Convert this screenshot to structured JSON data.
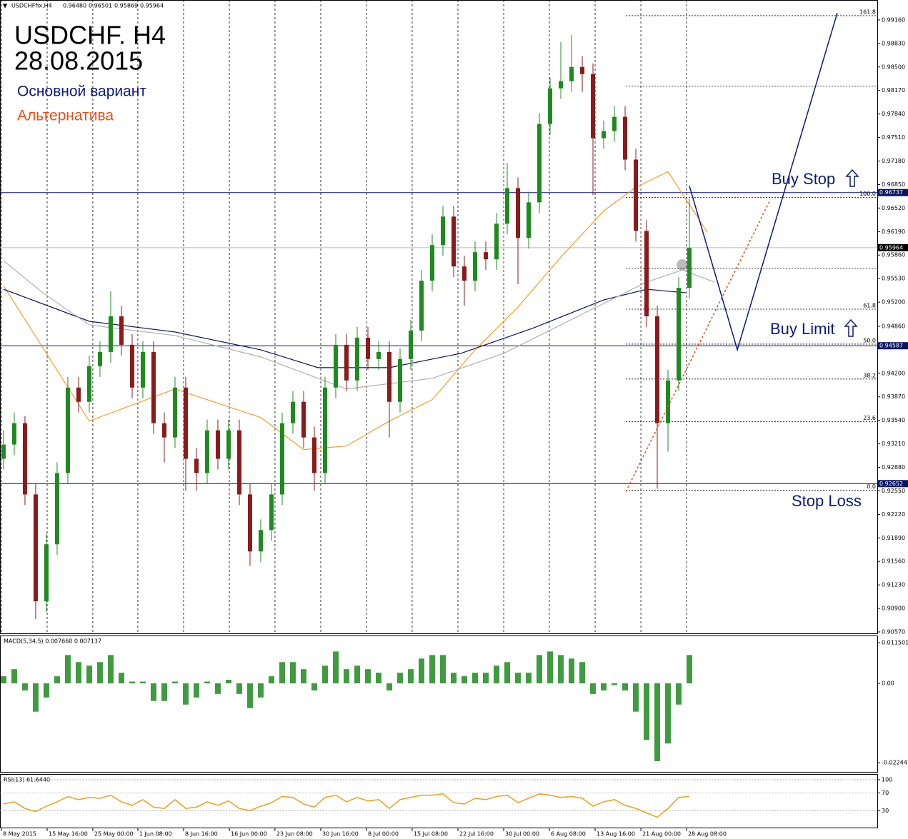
{
  "header": "USDCHFfix,H4",
  "header_values": [
    "0.96480",
    "0.96501",
    "0.95869",
    "0.95964"
  ],
  "chart_data": [
    {
      "type": "candlestick",
      "title": "USDCHF. H4",
      "subtitle": "28.08.2015",
      "up_color": "#1f8a1f",
      "down_color": "#8b1a1a",
      "grid": true,
      "xlim": [
        -0.33,
        81.53
      ],
      "ylim": [
        0.9054,
        0.9944
      ],
      "yticks": [
        {
          "value": 0.9916,
          "label": "0.99160"
        },
        {
          "value": 0.9883,
          "label": "0.98830"
        },
        {
          "value": 0.985,
          "label": "0.98500"
        },
        {
          "value": 0.9817,
          "label": "0.98170"
        },
        {
          "value": 0.9784,
          "label": "0.97840"
        },
        {
          "value": 0.9751,
          "label": "0.97510"
        },
        {
          "value": 0.9718,
          "label": "0.97180"
        },
        {
          "value": 0.9685,
          "label": "0.96850"
        },
        {
          "value": 0.9652,
          "label": "0.96520"
        },
        {
          "value": 0.9619,
          "label": "0.96190"
        },
        {
          "value": 0.9586,
          "label": "0.95860"
        },
        {
          "value": 0.9553,
          "label": "0.95530"
        },
        {
          "value": 0.952,
          "label": "0.95200"
        },
        {
          "value": 0.9486,
          "label": "0.94860"
        },
        {
          "value": 0.942,
          "label": "0.94200"
        },
        {
          "value": 0.9387,
          "label": "0.93870"
        },
        {
          "value": 0.9354,
          "label": "0.93540"
        },
        {
          "value": 0.9321,
          "label": "0.93210"
        },
        {
          "value": 0.9288,
          "label": "0.92880"
        },
        {
          "value": 0.9255,
          "label": "0.92550"
        },
        {
          "value": 0.9222,
          "label": "0.92220"
        },
        {
          "value": 0.9189,
          "label": "0.91890"
        },
        {
          "value": 0.9156,
          "label": "0.91560"
        },
        {
          "value": 0.9123,
          "label": "0.91230"
        },
        {
          "value": 0.909,
          "label": "0.90900"
        },
        {
          "value": 0.9057,
          "label": "0.90570"
        }
      ],
      "xticks": [
        {
          "value": -0.2,
          "label": "8 May 2015"
        },
        {
          "value": 4.07,
          "label": "15 May 16:00"
        },
        {
          "value": 8.33,
          "label": "25 May 00:00"
        },
        {
          "value": 12.53,
          "label": "1 Jun 08:00"
        },
        {
          "value": 16.8,
          "label": "8 Jun 16:00"
        },
        {
          "value": 21.07,
          "label": "16 Jun 00:00"
        },
        {
          "value": 25.33,
          "label": "23 Jun 08:00"
        },
        {
          "value": 29.6,
          "label": "30 Jun 16:00"
        },
        {
          "value": 33.87,
          "label": "8 Jul 00:00"
        },
        {
          "value": 38.13,
          "label": "15 Jul 08:00"
        },
        {
          "value": 42.4,
          "label": "22 Jul 16:00"
        },
        {
          "value": 46.67,
          "label": "30 Jul 00:00"
        },
        {
          "value": 50.93,
          "label": "6 Aug 08:00"
        },
        {
          "value": 55.2,
          "label": "13 Aug 16:00"
        },
        {
          "value": 59.47,
          "label": "21 Aug 00:00"
        },
        {
          "value": 63.73,
          "label": "28 Aug 08:00"
        }
      ],
      "ohlc": [
        [
          0.93,
          0.934,
          0.9285,
          0.932
        ],
        [
          0.932,
          0.9365,
          0.9305,
          0.935
        ],
        [
          0.935,
          0.936,
          0.9235,
          0.925
        ],
        [
          0.925,
          0.9265,
          0.9075,
          0.91
        ],
        [
          0.91,
          0.9195,
          0.9085,
          0.918
        ],
        [
          0.918,
          0.9295,
          0.9165,
          0.928
        ],
        [
          0.928,
          0.9415,
          0.9265,
          0.94
        ],
        [
          0.94,
          0.9415,
          0.9365,
          0.938
        ],
        [
          0.938,
          0.9445,
          0.9365,
          0.943
        ],
        [
          0.943,
          0.9465,
          0.9415,
          0.945
        ],
        [
          0.945,
          0.9535,
          0.9435,
          0.95
        ],
        [
          0.95,
          0.9515,
          0.9445,
          0.946
        ],
        [
          0.946,
          0.9475,
          0.9385,
          0.94
        ],
        [
          0.94,
          0.9465,
          0.9385,
          0.945
        ],
        [
          0.945,
          0.9465,
          0.9335,
          0.935
        ],
        [
          0.935,
          0.9365,
          0.9295,
          0.933
        ],
        [
          0.933,
          0.9415,
          0.9315,
          0.94
        ],
        [
          0.94,
          0.9415,
          0.9255,
          0.93
        ],
        [
          0.93,
          0.9315,
          0.9255,
          0.928
        ],
        [
          0.928,
          0.9355,
          0.9265,
          0.934
        ],
        [
          0.934,
          0.9355,
          0.9285,
          0.93
        ],
        [
          0.93,
          0.9355,
          0.9285,
          0.934
        ],
        [
          0.934,
          0.9355,
          0.9235,
          0.925
        ],
        [
          0.925,
          0.9265,
          0.915,
          0.917
        ],
        [
          0.917,
          0.9215,
          0.9155,
          0.92
        ],
        [
          0.92,
          0.9265,
          0.9185,
          0.925
        ],
        [
          0.925,
          0.9365,
          0.9235,
          0.935
        ],
        [
          0.935,
          0.9395,
          0.9335,
          0.938
        ],
        [
          0.938,
          0.9395,
          0.9315,
          0.933
        ],
        [
          0.933,
          0.9345,
          0.9255,
          0.928
        ],
        [
          0.928,
          0.9415,
          0.9265,
          0.94
        ],
        [
          0.94,
          0.9475,
          0.9385,
          0.946
        ],
        [
          0.946,
          0.9475,
          0.9395,
          0.941
        ],
        [
          0.941,
          0.9485,
          0.9395,
          0.947
        ],
        [
          0.947,
          0.9485,
          0.9425,
          0.944
        ],
        [
          0.944,
          0.9465,
          0.9425,
          0.945
        ],
        [
          0.945,
          0.9465,
          0.933,
          0.938
        ],
        [
          0.938,
          0.9455,
          0.9365,
          0.944
        ],
        [
          0.944,
          0.9495,
          0.9425,
          0.948
        ],
        [
          0.948,
          0.9565,
          0.9465,
          0.955
        ],
        [
          0.955,
          0.9615,
          0.9535,
          0.96
        ],
        [
          0.96,
          0.9655,
          0.9585,
          0.964
        ],
        [
          0.964,
          0.9655,
          0.9555,
          0.957
        ],
        [
          0.957,
          0.9585,
          0.9515,
          0.955
        ],
        [
          0.955,
          0.9605,
          0.9535,
          0.959
        ],
        [
          0.959,
          0.9605,
          0.9565,
          0.958
        ],
        [
          0.958,
          0.9645,
          0.9565,
          0.963
        ],
        [
          0.963,
          0.9715,
          0.9615,
          0.968
        ],
        [
          0.968,
          0.9695,
          0.9545,
          0.961
        ],
        [
          0.961,
          0.9675,
          0.9595,
          0.966
        ],
        [
          0.966,
          0.9785,
          0.9645,
          0.977
        ],
        [
          0.977,
          0.9835,
          0.9755,
          0.982
        ],
        [
          0.982,
          0.9885,
          0.9805,
          0.983
        ],
        [
          0.983,
          0.9895,
          0.9815,
          0.985
        ],
        [
          0.985,
          0.9865,
          0.9815,
          0.984
        ],
        [
          0.984,
          0.9855,
          0.967,
          0.975
        ],
        [
          0.975,
          0.9775,
          0.9735,
          0.976
        ],
        [
          0.976,
          0.9795,
          0.9745,
          0.978
        ],
        [
          0.978,
          0.9795,
          0.9705,
          0.972
        ],
        [
          0.972,
          0.9735,
          0.9605,
          0.962
        ],
        [
          0.962,
          0.9635,
          0.9485,
          0.95
        ],
        [
          0.95,
          0.9515,
          0.9258,
          0.935
        ],
        [
          0.935,
          0.9425,
          0.931,
          0.941
        ],
        [
          0.941,
          0.9555,
          0.9395,
          0.954
        ],
        [
          0.954,
          0.9665,
          0.9525,
          0.9596
        ]
      ],
      "moving_averages": [
        {
          "color": "#f0a030",
          "x": [
            0,
            8,
            16,
            24,
            28,
            32,
            36,
            40,
            44,
            48,
            52,
            56,
            59,
            62,
            65.67
          ],
          "values": [
            0.9543,
            0.9353,
            0.9398,
            0.9358,
            0.9313,
            0.9318,
            0.9353,
            0.9383,
            0.9453,
            0.9513,
            0.9583,
            0.9648,
            0.9681,
            0.9703,
            0.9618
          ]
        },
        {
          "color": "#0a1460",
          "x": [
            0,
            8,
            16,
            24,
            29.33,
            36,
            42.67,
            49.33,
            56,
            60,
            63.67
          ],
          "values": [
            0.9538,
            0.9493,
            0.9478,
            0.9453,
            0.9428,
            0.9428,
            0.9448,
            0.9483,
            0.9523,
            0.9538,
            0.9533
          ]
        },
        {
          "color": "#b0b0b0",
          "x": [
            0,
            3.67,
            8,
            16,
            24,
            32,
            40,
            46.67,
            53.33,
            60,
            63.33,
            66.33
          ],
          "values": [
            0.9578,
            0.9533,
            0.9488,
            0.9473,
            0.9443,
            0.9398,
            0.9413,
            0.9448,
            0.9498,
            0.9548,
            0.9565,
            0.9548
          ]
        }
      ],
      "series": [
        {
          "name": "Основной вариант",
          "color": "#0a1a7a",
          "dashed": false,
          "x": [
            64,
            68.47,
            77.8
          ],
          "values": [
            0.9683,
            0.9453,
            0.9926
          ]
        },
        {
          "name": "Альтернатива",
          "color": "#e0501e",
          "dashed": true,
          "x": [
            58.07,
            71.53
          ],
          "values": [
            0.9254,
            0.9663
          ]
        }
      ],
      "levels": [
        {
          "value": 0.96737,
          "label": "0.96737"
        },
        {
          "value": 0.94587,
          "label": "0.94587"
        },
        {
          "value": 0.92652,
          "label": "0.92652"
        }
      ],
      "current_price": {
        "value": 0.95964,
        "label": "0.95964"
      },
      "fibo": [
        {
          "label": "161.8",
          "price": 0.9922
        },
        {
          "label": null,
          "price": 0.9823
        },
        {
          "label": "100.0",
          "price": 0.9667
        },
        {
          "label": null,
          "price": 0.9567
        },
        {
          "label": "61.8",
          "price": 0.951
        },
        {
          "label": "50.0",
          "price": 0.9461
        },
        {
          "label": "38.2",
          "price": 0.9412
        },
        {
          "label": "23.6",
          "price": 0.9352
        },
        {
          "label": "0.0",
          "price": 0.9256
        }
      ],
      "annotations": [
        "Buy Stop",
        "Buy Limit",
        "Stop Loss"
      ]
    },
    {
      "type": "bar",
      "title": "MACD(5,34,5) 0.007660 0.007137",
      "color": "#1f8a1f",
      "xlim": [
        -0.33,
        81.53
      ],
      "ylim": [
        -0.02522,
        0.01352
      ],
      "yticks": [
        {
          "value": 0.011501,
          "label": "0.011501"
        },
        {
          "value": 0,
          "label": "0.00"
        },
        {
          "value": -0.02244,
          "label": "-0.02244"
        }
      ],
      "values": [
        0.002,
        0.004,
        -0.002,
        -0.008,
        -0.004,
        0.002,
        0.008,
        0.006,
        0.005,
        0.006,
        0.008,
        0.003,
        0.0005,
        0.0005,
        -0.005,
        -0.005,
        0.0005,
        -0.006,
        -0.004,
        0.0005,
        -0.003,
        0.001,
        -0.003,
        -0.007,
        -0.004,
        0.002,
        0.006,
        0.006,
        0.004,
        -0.002,
        0.005,
        0.009,
        0.004,
        0.005,
        0.004,
        0.003,
        -0.002,
        0.003,
        0.004,
        0.007,
        0.008,
        0.008,
        0.003,
        0.002,
        0.003,
        0.003,
        0.005,
        0.006,
        0.003,
        0.003,
        0.008,
        0.009,
        0.008,
        0.007,
        0.006,
        -0.003,
        -0.002,
        -0.0005,
        -0.002,
        -0.008,
        -0.016,
        -0.022,
        -0.017,
        -0.006,
        0.008
      ]
    },
    {
      "type": "line",
      "title": "RSI(13) 61.6440",
      "color": "#e8a020",
      "xlim": [
        -0.33,
        81.53
      ],
      "ylim": [
        -10,
        113
      ],
      "yticks": [
        100,
        70,
        30
      ],
      "values": [
        45,
        50,
        35,
        28,
        40,
        50,
        62,
        55,
        60,
        58,
        65,
        50,
        42,
        55,
        38,
        35,
        55,
        35,
        38,
        50,
        42,
        52,
        35,
        30,
        40,
        48,
        62,
        60,
        45,
        38,
        60,
        65,
        50,
        60,
        52,
        55,
        35,
        55,
        60,
        65,
        65,
        68,
        48,
        45,
        58,
        55,
        62,
        65,
        48,
        58,
        68,
        65,
        60,
        62,
        58,
        40,
        50,
        55,
        42,
        35,
        25,
        15,
        35,
        60,
        62
      ]
    }
  ]
}
